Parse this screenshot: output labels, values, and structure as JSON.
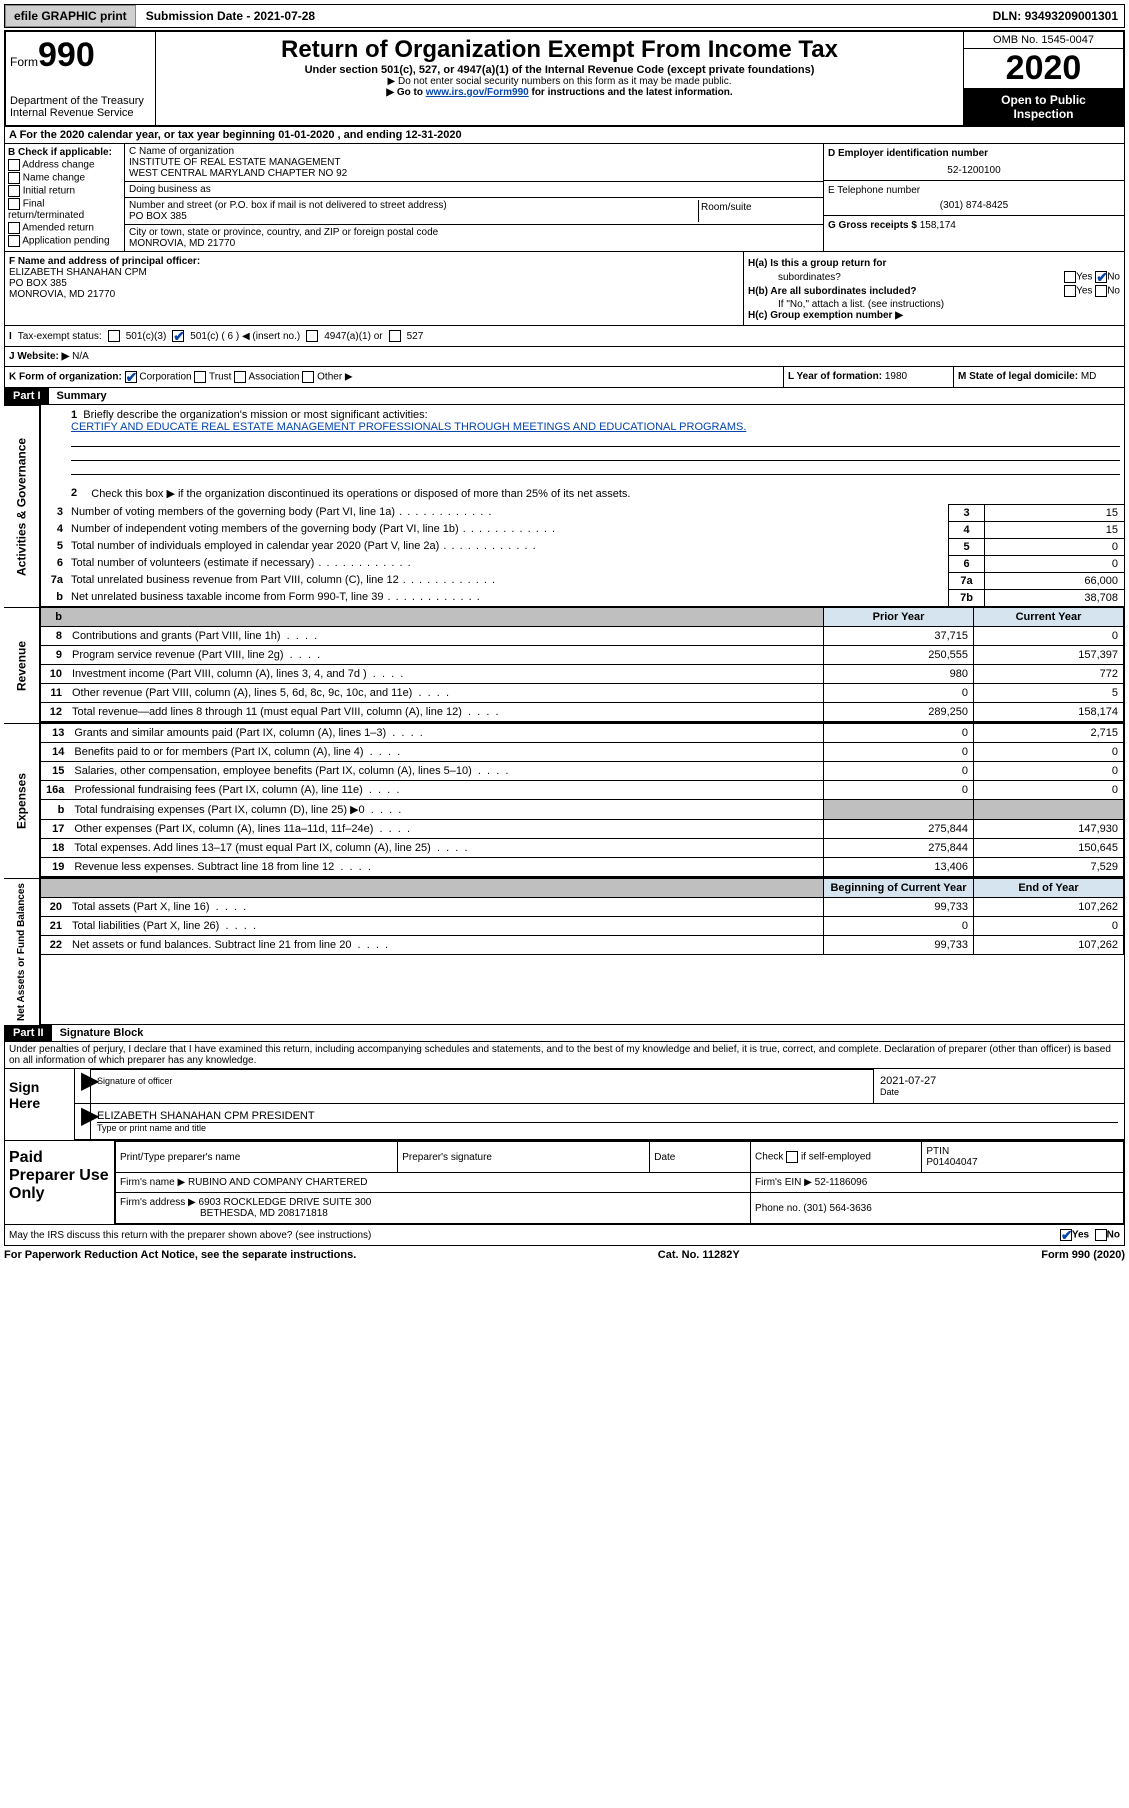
{
  "topbar": {
    "efile": "efile GRAPHIC print",
    "subdate_lbl": "Submission Date - ",
    "subdate": "2021-07-28",
    "dln_lbl": "DLN: ",
    "dln": "93493209001301"
  },
  "header": {
    "form_word": "Form",
    "form_no": "990",
    "dept": "Department of the Treasury",
    "irs": "Internal Revenue Service",
    "title": "Return of Organization Exempt From Income Tax",
    "subtitle": "Under section 501(c), 527, or 4947(a)(1) of the Internal Revenue Code (except private foundations)",
    "note1": "▶ Do not enter social security numbers on this form as it may be made public.",
    "note2_pre": "▶ Go to ",
    "note2_link": "www.irs.gov/Form990",
    "note2_post": " for instructions and the latest information.",
    "omb": "OMB No. 1545-0047",
    "year": "2020",
    "open": "Open to Public",
    "inspect": "Inspection"
  },
  "rowA": "A   For the 2020 calendar year, or tax year beginning 01-01-2020    , and ending 12-31-2020",
  "B": {
    "hdr": "B Check if applicable:",
    "opts": [
      "Address change",
      "Name change",
      "Initial return",
      "Final return/terminated",
      "Amended return",
      "Application pending"
    ]
  },
  "C": {
    "name_lbl": "C Name of organization",
    "name1": "INSTITUTE OF REAL ESTATE MANAGEMENT",
    "name2": "WEST CENTRAL MARYLAND CHAPTER NO 92",
    "dba_lbl": "Doing business as",
    "dba": "",
    "street_lbl": "Number and street (or P.O. box if mail is not delivered to street address)",
    "suite_lbl": "Room/suite",
    "street": "PO BOX 385",
    "city_lbl": "City or town, state or province, country, and ZIP or foreign postal code",
    "city": "MONROVIA, MD  21770"
  },
  "D": {
    "lbl": "D Employer identification number",
    "val": "52-1200100"
  },
  "E": {
    "lbl": "E Telephone number",
    "val": "(301) 874-8425"
  },
  "G": {
    "lbl": "G Gross receipts $",
    "val": "158,174"
  },
  "F": {
    "lbl": "F  Name and address of principal officer:",
    "l1": "ELIZABETH SHANAHAN CPM",
    "l2": "PO BOX 385",
    "l3": "MONROVIA, MD  21770"
  },
  "H": {
    "a": "H(a)  Is this a group return for",
    "a2": "subordinates?",
    "b": "H(b)  Are all subordinates included?",
    "bnote": "If \"No,\" attach a list. (see instructions)",
    "c": "H(c)  Group exemption number ▶",
    "yes": "Yes",
    "no": "No"
  },
  "I": {
    "lbl": "Tax-exempt status:",
    "o1": "501(c)(3)",
    "o2": "501(c) ( 6 ) ◀ (insert no.)",
    "o3": "4947(a)(1) or",
    "o4": "527"
  },
  "J": {
    "lbl": "J   Website: ▶",
    "val": "N/A"
  },
  "K": {
    "lbl": "K Form of organization:",
    "o1": "Corporation",
    "o2": "Trust",
    "o3": "Association",
    "o4": "Other ▶"
  },
  "L": {
    "lbl": "L Year of formation:",
    "val": "1980"
  },
  "M": {
    "lbl": "M State of legal domicile:",
    "val": "MD"
  },
  "part1": {
    "bar": "Part I",
    "title": "Summary"
  },
  "p1": {
    "l1": "Briefly describe the organization's mission or most significant activities:",
    "l1v": "CERTIFY AND EDUCATE REAL ESTATE MANAGEMENT PROFESSIONALS THROUGH MEETINGS AND EDUCATIONAL PROGRAMS.",
    "l2": "Check this box ▶       if the organization discontinued its operations or disposed of more than 25% of its net assets.",
    "rows": [
      {
        "n": "3",
        "t": "Number of voting members of the governing body (Part VI, line 1a)",
        "c": "3",
        "v": "15"
      },
      {
        "n": "4",
        "t": "Number of independent voting members of the governing body (Part VI, line 1b)",
        "c": "4",
        "v": "15"
      },
      {
        "n": "5",
        "t": "Total number of individuals employed in calendar year 2020 (Part V, line 2a)",
        "c": "5",
        "v": "0"
      },
      {
        "n": "6",
        "t": "Total number of volunteers (estimate if necessary)",
        "c": "6",
        "v": "0"
      },
      {
        "n": "7a",
        "t": "Total unrelated business revenue from Part VIII, column (C), line 12",
        "c": "7a",
        "v": "66,000"
      },
      {
        "n": "b",
        "t": "Net unrelated business taxable income from Form 990-T, line 39",
        "c": "7b",
        "v": "38,708"
      }
    ]
  },
  "cols": {
    "py": "Prior Year",
    "cy": "Current Year",
    "boy": "Beginning of Current Year",
    "eoy": "End of Year"
  },
  "rev": [
    {
      "n": "8",
      "t": "Contributions and grants (Part VIII, line 1h)",
      "p": "37,715",
      "c": "0"
    },
    {
      "n": "9",
      "t": "Program service revenue (Part VIII, line 2g)",
      "p": "250,555",
      "c": "157,397"
    },
    {
      "n": "10",
      "t": "Investment income (Part VIII, column (A), lines 3, 4, and 7d )",
      "p": "980",
      "c": "772"
    },
    {
      "n": "11",
      "t": "Other revenue (Part VIII, column (A), lines 5, 6d, 8c, 9c, 10c, and 11e)",
      "p": "0",
      "c": "5"
    },
    {
      "n": "12",
      "t": "Total revenue—add lines 8 through 11 (must equal Part VIII, column (A), line 12)",
      "p": "289,250",
      "c": "158,174"
    }
  ],
  "exp": [
    {
      "n": "13",
      "t": "Grants and similar amounts paid (Part IX, column (A), lines 1–3)",
      "p": "0",
      "c": "2,715"
    },
    {
      "n": "14",
      "t": "Benefits paid to or for members (Part IX, column (A), line 4)",
      "p": "0",
      "c": "0"
    },
    {
      "n": "15",
      "t": "Salaries, other compensation, employee benefits (Part IX, column (A), lines 5–10)",
      "p": "0",
      "c": "0"
    },
    {
      "n": "16a",
      "t": "Professional fundraising fees (Part IX, column (A), line 11e)",
      "p": "0",
      "c": "0"
    },
    {
      "n": "b",
      "t": "Total fundraising expenses (Part IX, column (D), line 25) ▶0",
      "p": "",
      "c": "",
      "shade": true
    },
    {
      "n": "17",
      "t": "Other expenses (Part IX, column (A), lines 11a–11d, 11f–24e)",
      "p": "275,844",
      "c": "147,930"
    },
    {
      "n": "18",
      "t": "Total expenses. Add lines 13–17 (must equal Part IX, column (A), line 25)",
      "p": "275,844",
      "c": "150,645"
    },
    {
      "n": "19",
      "t": "Revenue less expenses. Subtract line 18 from line 12",
      "p": "13,406",
      "c": "7,529"
    }
  ],
  "net": [
    {
      "n": "20",
      "t": "Total assets (Part X, line 16)",
      "p": "99,733",
      "c": "107,262"
    },
    {
      "n": "21",
      "t": "Total liabilities (Part X, line 26)",
      "p": "0",
      "c": "0"
    },
    {
      "n": "22",
      "t": "Net assets or fund balances. Subtract line 21 from line 20",
      "p": "99,733",
      "c": "107,262"
    }
  ],
  "part2": {
    "bar": "Part II",
    "title": "Signature Block"
  },
  "penalty": "Under penalties of perjury, I declare that I have examined this return, including accompanying schedules and statements, and to the best of my knowledge and belief, it is true, correct, and complete. Declaration of preparer (other than officer) is based on all information of which preparer has any knowledge.",
  "sign": {
    "here": "Sign Here",
    "sig_of": "Signature of officer",
    "date_lbl": "Date",
    "date": "2021-07-27",
    "name": "ELIZABETH SHANAHAN CPM  PRESIDENT",
    "name_lbl": "Type or print name and title"
  },
  "prep": {
    "lbl": "Paid Preparer Use Only",
    "h1": "Print/Type preparer's name",
    "h2": "Preparer's signature",
    "h3": "Date",
    "h4_pre": "Check",
    "h4_post": "if self-employed",
    "h5": "PTIN",
    "ptin": "P01404047",
    "firm_lbl": "Firm's name   ▶",
    "firm": "RUBINO AND COMPANY CHARTERED",
    "ein_lbl": "Firm's EIN ▶",
    "ein": "52-1186096",
    "addr_lbl": "Firm's address ▶",
    "addr1": "6903 ROCKLEDGE DRIVE SUITE 300",
    "addr2": "BETHESDA, MD  208171818",
    "phone_lbl": "Phone no.",
    "phone": "(301) 564-3636"
  },
  "discuss": "May the IRS discuss this return with the preparer shown above? (see instructions)",
  "foot": {
    "l": "For Paperwork Reduction Act Notice, see the separate instructions.",
    "m": "Cat. No. 11282Y",
    "r": "Form 990 (2020)"
  },
  "side": {
    "ag": "Activities & Governance",
    "rev": "Revenue",
    "exp": "Expenses",
    "net": "Net Assets or Fund Balances"
  }
}
